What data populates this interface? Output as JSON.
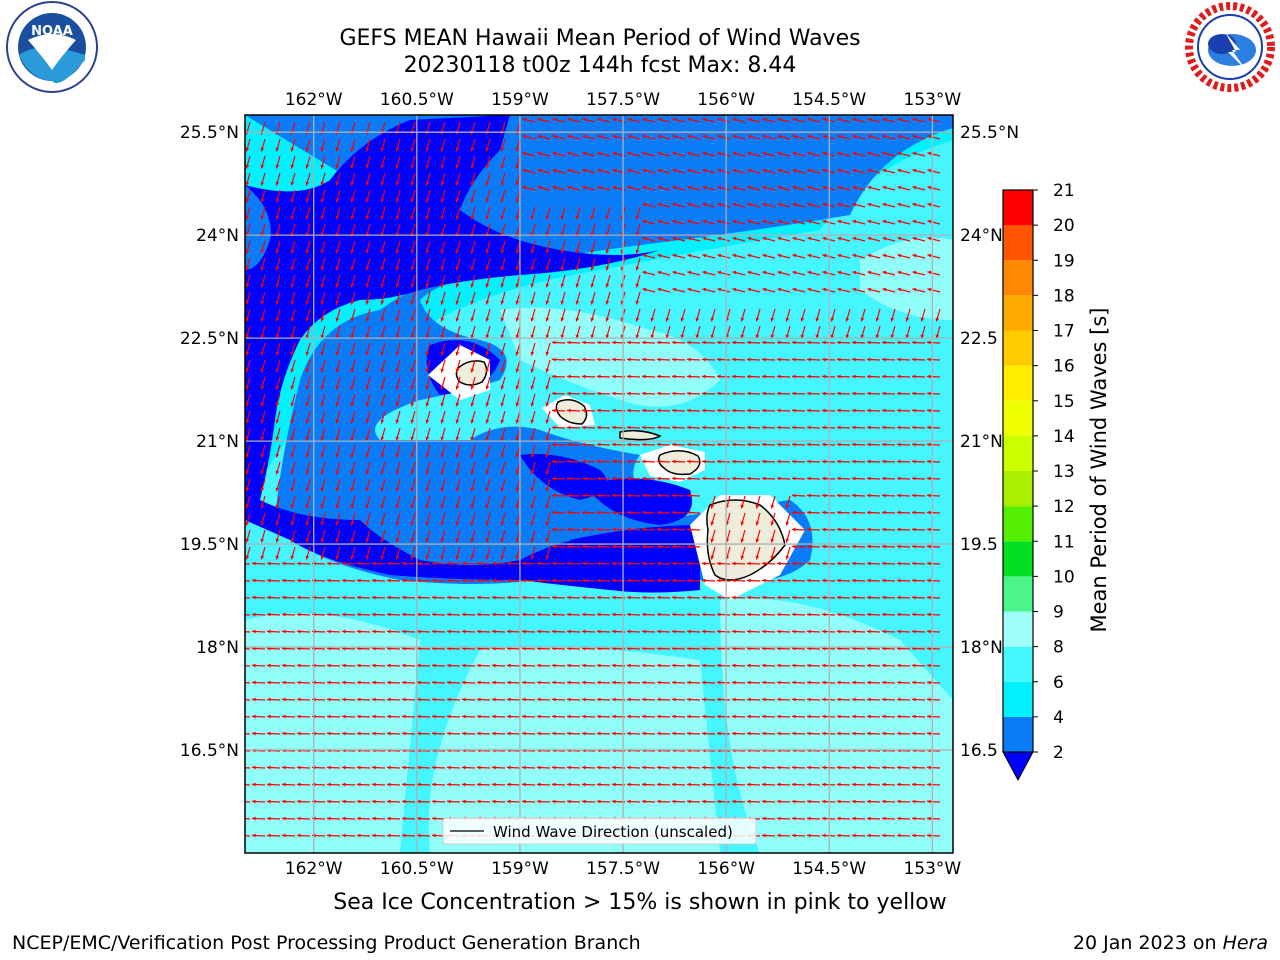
{
  "header": {
    "title_line1": "GEFS MEAN Hawaii Mean Period of Wind Waves",
    "title_line2": "20230118 t00z 144h fcst   Max: 8.44"
  },
  "logos": {
    "left": "NOAA",
    "left_ring_text": "NATIONAL OCEANIC AND ATMOSPHERIC ADMINISTRATION · U.S. DEPARTMENT OF COMMERCE",
    "right_ring_text": "NATIONAL WEATHER SERVICE"
  },
  "map": {
    "lon_ticks": [
      "162°W",
      "160.5°W",
      "159°W",
      "157.5°W",
      "156°W",
      "154.5°W",
      "153°W"
    ],
    "lon_values": [
      -162,
      -160.5,
      -159,
      -157.5,
      -156,
      -154.5,
      -153
    ],
    "lat_ticks_left": [
      "25.5°N",
      "24°N",
      "22.5°N",
      "21°N",
      "19.5°N",
      "18°N",
      "16.5°N"
    ],
    "lat_ticks_right": [
      "25.5°N",
      "24°N",
      "22.5",
      "21°N",
      "19.5",
      "18°N",
      "16.5"
    ],
    "lat_values": [
      25.5,
      24,
      22.5,
      21,
      19.5,
      18,
      16.5
    ],
    "lon_range": [
      -163,
      -152.7
    ],
    "lat_range": [
      15,
      25.75
    ],
    "legend_label": "Wind Wave Direction (unscaled)",
    "arrow_color": "#ff0000"
  },
  "colorbar": {
    "label": "Mean Period of Wind Waves [s]",
    "ticks": [
      "2",
      "4",
      "6",
      "8",
      "9",
      "10",
      "11",
      "12",
      "13",
      "14",
      "15",
      "16",
      "17",
      "18",
      "19",
      "20",
      "21"
    ],
    "colors": [
      "#0a7cf7",
      "#00f0ff",
      "#43f8ff",
      "#a0fff8",
      "#4cf58a",
      "#00e020",
      "#55ee00",
      "#aaee00",
      "#ccff00",
      "#eeff00",
      "#ffee00",
      "#ffcc00",
      "#ffaa00",
      "#ff8800",
      "#ff5500",
      "#ff2200",
      "#ff0000"
    ],
    "under_color": "#0000ff"
  },
  "subtitle": "Sea Ice Concentration > 15% is shown in pink to yellow",
  "footer": {
    "left": "NCEP/EMC/Verification Post Processing Product Generation Branch",
    "right_prefix": "20 Jan 2023 on ",
    "right_machine": "Hera"
  }
}
